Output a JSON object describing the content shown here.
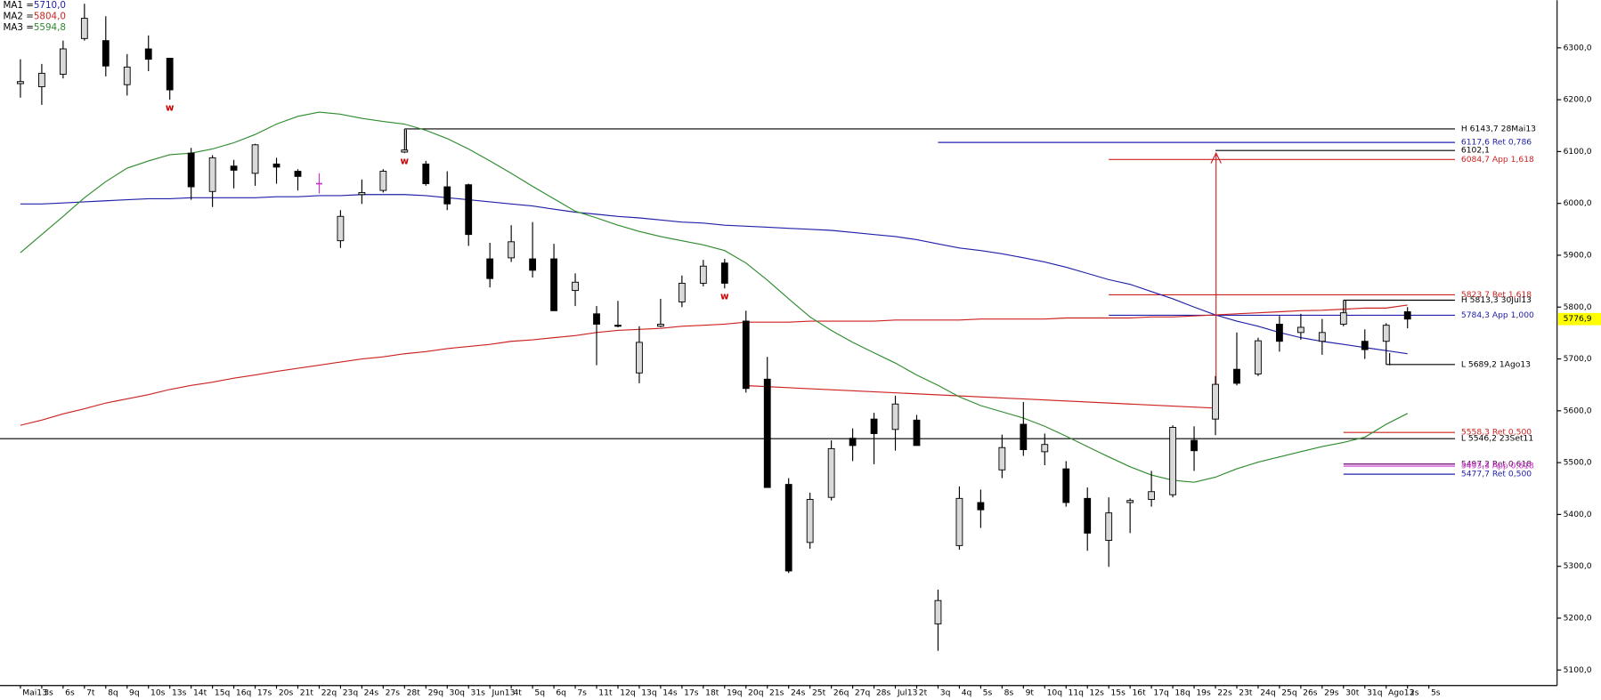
{
  "chart_data": {
    "type": "candlestick",
    "categories": [
      "Mai13",
      "3s",
      "6s",
      "7t",
      "8q",
      "9q",
      "10s",
      "13s",
      "14t",
      "15q",
      "16q",
      "17s",
      "20s",
      "21t",
      "22q",
      "23q",
      "24s",
      "27s",
      "28t",
      "29q",
      "30q",
      "31s",
      "Jun13",
      "4t",
      "5q",
      "6q",
      "7s",
      "11t",
      "12q",
      "13q",
      "14s",
      "17s",
      "18t",
      "19q",
      "20q",
      "21s",
      "24s",
      "25t",
      "26q",
      "27q",
      "28s",
      "Jul13",
      "2t",
      "3q",
      "4q",
      "5s",
      "8s",
      "9t",
      "10q",
      "11q",
      "12s",
      "15s",
      "16t",
      "17q",
      "18q",
      "19s",
      "22s",
      "23t",
      "24q",
      "25q",
      "26s",
      "29s",
      "30t",
      "31q",
      "Ago13",
      "2s",
      "5s"
    ],
    "open": [
      6231,
      6225,
      6249,
      6318,
      6314,
      6229,
      6298,
      6280,
      6097,
      6023,
      6072,
      6058,
      6076,
      6062,
      6038,
      5928,
      6017,
      6025,
      6099,
      6076,
      6032,
      6036,
      5893,
      5895,
      5893,
      5893,
      5832,
      5787,
      5765,
      5673,
      5763,
      5810,
      5846,
      5885,
      5773,
      5661,
      5458,
      5346,
      5433,
      5547,
      5584,
      5564,
      5582,
      5189,
      5340,
      5423,
      5486,
      5574,
      5521,
      5488,
      5431,
      5350,
      5423,
      5429,
      5438,
      5543,
      5584,
      5680,
      5671,
      5767,
      5751,
      5734,
      5767,
      5734,
      5734,
      5791,
      null
    ],
    "high": [
      6278,
      6269,
      6314,
      6385,
      6361,
      6288,
      6324,
      6280,
      6107,
      6093,
      6084,
      6115,
      6088,
      6066,
      6058,
      5987,
      6046,
      6066,
      6143.7,
      6082,
      6062,
      6038,
      5924,
      5958,
      5964,
      5922,
      5865,
      5802,
      5812,
      5763,
      5816,
      5861,
      5891,
      5893,
      5793,
      5704,
      5470,
      5442,
      5543,
      5566,
      5596,
      5629,
      5592,
      5255,
      5454,
      5448,
      5554,
      5617,
      5556,
      5503,
      5452,
      5433,
      5431,
      5484,
      5572,
      5570,
      5667,
      5751,
      5741,
      5783,
      5787,
      5777,
      5813.3,
      5757,
      5769,
      5800,
      null
    ],
    "low": [
      6204,
      6190,
      6241,
      6314,
      6245,
      6208,
      6255,
      6200,
      6007,
      5993,
      6029,
      6034,
      6038,
      6025,
      6019,
      5914,
      5999,
      6021,
      6097,
      6034,
      5987,
      5918,
      5838,
      5887,
      5857,
      5793,
      5802,
      5688,
      5761,
      5653,
      5761,
      5800,
      5840,
      5836,
      5635,
      5452,
      5287,
      5334,
      5427,
      5503,
      5497,
      5523,
      5533,
      5137,
      5332,
      5374,
      5470,
      5513,
      5495,
      5415,
      5330,
      5299,
      5364,
      5415,
      5433,
      5484,
      5553,
      5649,
      5667,
      5714,
      5737,
      5708,
      5763,
      5700,
      5689.2,
      5759,
      null
    ],
    "close": [
      6235,
      6251,
      6298,
      6357,
      6265,
      6263,
      6278,
      6219,
      6032,
      6088,
      6064,
      6113,
      6070,
      6052,
      6038,
      5975,
      6021,
      6062,
      6103,
      6038,
      5999,
      5940,
      5855,
      5926,
      5871,
      5793,
      5848,
      5767,
      5763,
      5732,
      5767,
      5846,
      5879,
      5846,
      5643,
      5452,
      5291,
      5429,
      5527,
      5533,
      5556,
      5613,
      5533,
      5234,
      5431,
      5409,
      5529,
      5525,
      5535,
      5423,
      5364,
      5403,
      5427,
      5444,
      5568,
      5523,
      5651,
      5653,
      5735,
      5734,
      5761,
      5751,
      5789,
      5718,
      5765,
      5776.9,
      null
    ],
    "up_color": "#d9d9d9",
    "down_color": "#000000",
    "doji_color": "#cc33cc",
    "signals": [
      null,
      null,
      null,
      null,
      null,
      null,
      null,
      "w",
      null,
      null,
      null,
      null,
      null,
      null,
      null,
      null,
      null,
      null,
      "w",
      null,
      null,
      null,
      null,
      null,
      null,
      null,
      null,
      null,
      null,
      null,
      null,
      null,
      null,
      "w",
      null,
      null,
      null,
      null,
      null,
      null,
      null,
      null,
      null,
      null,
      null,
      null,
      null,
      null,
      null,
      null,
      null,
      null,
      null,
      null,
      null,
      null,
      null,
      null,
      null,
      null,
      null,
      null,
      null,
      null,
      null,
      null,
      null
    ],
    "signal_color": "#cc0000",
    "series": [
      {
        "name": "MA1 =",
        "color": "#2020a8",
        "legend_value": {
          "value": 5710,
          "label": "5710,0"
        },
        "values": [
          5999,
          5999,
          6001,
          6003,
          6005,
          6007,
          6009,
          6009,
          6011,
          6011,
          6011,
          6011,
          6013,
          6013,
          6015,
          6015,
          6017,
          6017,
          6017,
          6015,
          6011,
          6007,
          6003,
          5999,
          5995,
          5989,
          5983,
          5979,
          5975,
          5972,
          5968,
          5964,
          5962,
          5958,
          5956,
          5954,
          5952,
          5950,
          5948,
          5944,
          5940,
          5936,
          5930,
          5922,
          5914,
          5909,
          5903,
          5895,
          5887,
          5877,
          5865,
          5853,
          5844,
          5830,
          5816,
          5800,
          5785,
          5773,
          5763,
          5751,
          5741,
          5734,
          5728,
          5722,
          5716,
          5710,
          null
        ]
      },
      {
        "name": "MA2 =",
        "color": "#cc2222",
        "legend_value": {
          "value": 5804,
          "label": "5804,0"
        },
        "values": [
          5572,
          5582,
          5594,
          5604,
          5615,
          5623,
          5631,
          5641,
          5649,
          5655,
          5663,
          5669,
          5676,
          5682,
          5688,
          5694,
          5700,
          5704,
          5710,
          5714,
          5720,
          5724,
          5728,
          5734,
          5737,
          5741,
          5745,
          5751,
          5755,
          5757,
          5759,
          5763,
          5765,
          5767,
          5771,
          5771,
          5771,
          5773,
          5773,
          5773,
          5773,
          5775,
          5775,
          5775,
          5775,
          5777,
          5777,
          5777,
          5777,
          5779,
          5779,
          5779,
          5779,
          5781,
          5781,
          5783,
          5785,
          5787,
          5789,
          5791,
          5793,
          5794,
          5796,
          5798,
          5798,
          5804,
          null
        ]
      },
      {
        "name": "MA3 =",
        "color": "#2e8b2e",
        "legend_value": {
          "value": 5594.8,
          "label": "5594,8"
        },
        "values": [
          5905,
          5940,
          5975,
          6011,
          6042,
          6068,
          6082,
          6094,
          6097,
          6105,
          6117,
          6133,
          6153,
          6168,
          6176,
          6172,
          6164,
          6158,
          6153,
          6141,
          6125,
          6105,
          6082,
          6058,
          6033,
          6009,
          5985,
          5972,
          5958,
          5946,
          5936,
          5928,
          5920,
          5909,
          5885,
          5852,
          5816,
          5781,
          5755,
          5732,
          5712,
          5692,
          5669,
          5649,
          5627,
          5610,
          5598,
          5586,
          5570,
          5551,
          5531,
          5511,
          5492,
          5476,
          5466,
          5462,
          5472,
          5488,
          5501,
          5511,
          5521,
          5531,
          5539,
          5549,
          5574,
          5594.8,
          null
        ]
      }
    ],
    "annotations": [
      {
        "value": 6143.7,
        "label": "H 6143,7 28Mai13",
        "color": "#000000"
      },
      {
        "value": 6117.6,
        "label": "6117,6 Ret 0,786",
        "color": "#2020a8"
      },
      {
        "value": 6102.1,
        "label": "6102,1",
        "color": "#000000"
      },
      {
        "value": 6084.7,
        "label": "6084,7 App 1,618",
        "color": "#cc2222"
      },
      {
        "value": 5823.7,
        "label": "5823,7 Ret 1,618",
        "color": "#cc2222"
      },
      {
        "value": 5813.3,
        "label": "H 5813,3 30Jul13",
        "color": "#000000"
      },
      {
        "value": 5784.3,
        "label": "5784,3 App 1,000",
        "color": "#2020a8"
      },
      {
        "value": 5689.2,
        "label": "L 5689,2 1Ago13",
        "color": "#000000"
      },
      {
        "value": 5558.3,
        "label": "5558,3 Ret 0,500",
        "color": "#cc2222"
      },
      {
        "value": 5546.2,
        "label": "L 5546,2 23Set11",
        "color": "#000000"
      },
      {
        "value": 5497.2,
        "label": "5497,2 Ret 0,618",
        "color": "#600060"
      },
      {
        "value": 5493.3,
        "label": "5493,3 App 0,618",
        "color": "#cc33cc"
      },
      {
        "value": 5477.7,
        "label": "5477,7 Ret 0,500",
        "color": "#2020a8"
      }
    ],
    "last_price": {
      "value": 5776.9,
      "label": "5776,9"
    },
    "last_price_color": "#ffff00",
    "ylim": [
      5070,
      6392
    ],
    "yticks": [
      {
        "value": 5100,
        "label": "5100,0"
      },
      {
        "value": 5200,
        "label": "5200,0"
      },
      {
        "value": 5300,
        "label": "5300,0"
      },
      {
        "value": 5400,
        "label": "5400,0"
      },
      {
        "value": 5500,
        "label": "5500,0"
      },
      {
        "value": 5600,
        "label": "5600,0"
      },
      {
        "value": 5700,
        "label": "5700,0"
      },
      {
        "value": 5800,
        "label": "5800,0"
      },
      {
        "value": 5900,
        "label": "5900,0"
      },
      {
        "value": 6000,
        "label": "6000,0"
      },
      {
        "value": 6100,
        "label": "6100,0"
      },
      {
        "value": 6200,
        "label": "6200,0"
      },
      {
        "value": 6300,
        "label": "6300,0"
      }
    ]
  }
}
